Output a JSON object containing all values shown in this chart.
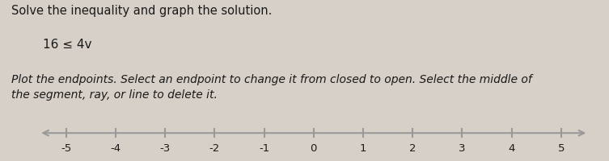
{
  "title_line1": "Solve the inequality and graph the solution.",
  "inequality": "16 ≤ 4v",
  "instruction": "Plot the endpoints. Select an endpoint to change it from closed to open. Select the middle of\nthe segment, ray, or line to delete it.",
  "number_line_min": -5,
  "number_line_max": 5,
  "tick_values": [
    -5,
    -4,
    -3,
    -2,
    -1,
    0,
    1,
    2,
    3,
    4,
    5
  ],
  "background_color": "#d6d0c8",
  "text_color": "#1a1a1a",
  "line_color": "#999999",
  "fig_width": 7.53,
  "fig_height": 2.01,
  "title_fontsize": 10.5,
  "inequality_fontsize": 11,
  "instruction_fontsize": 10,
  "tick_fontsize": 9.5
}
